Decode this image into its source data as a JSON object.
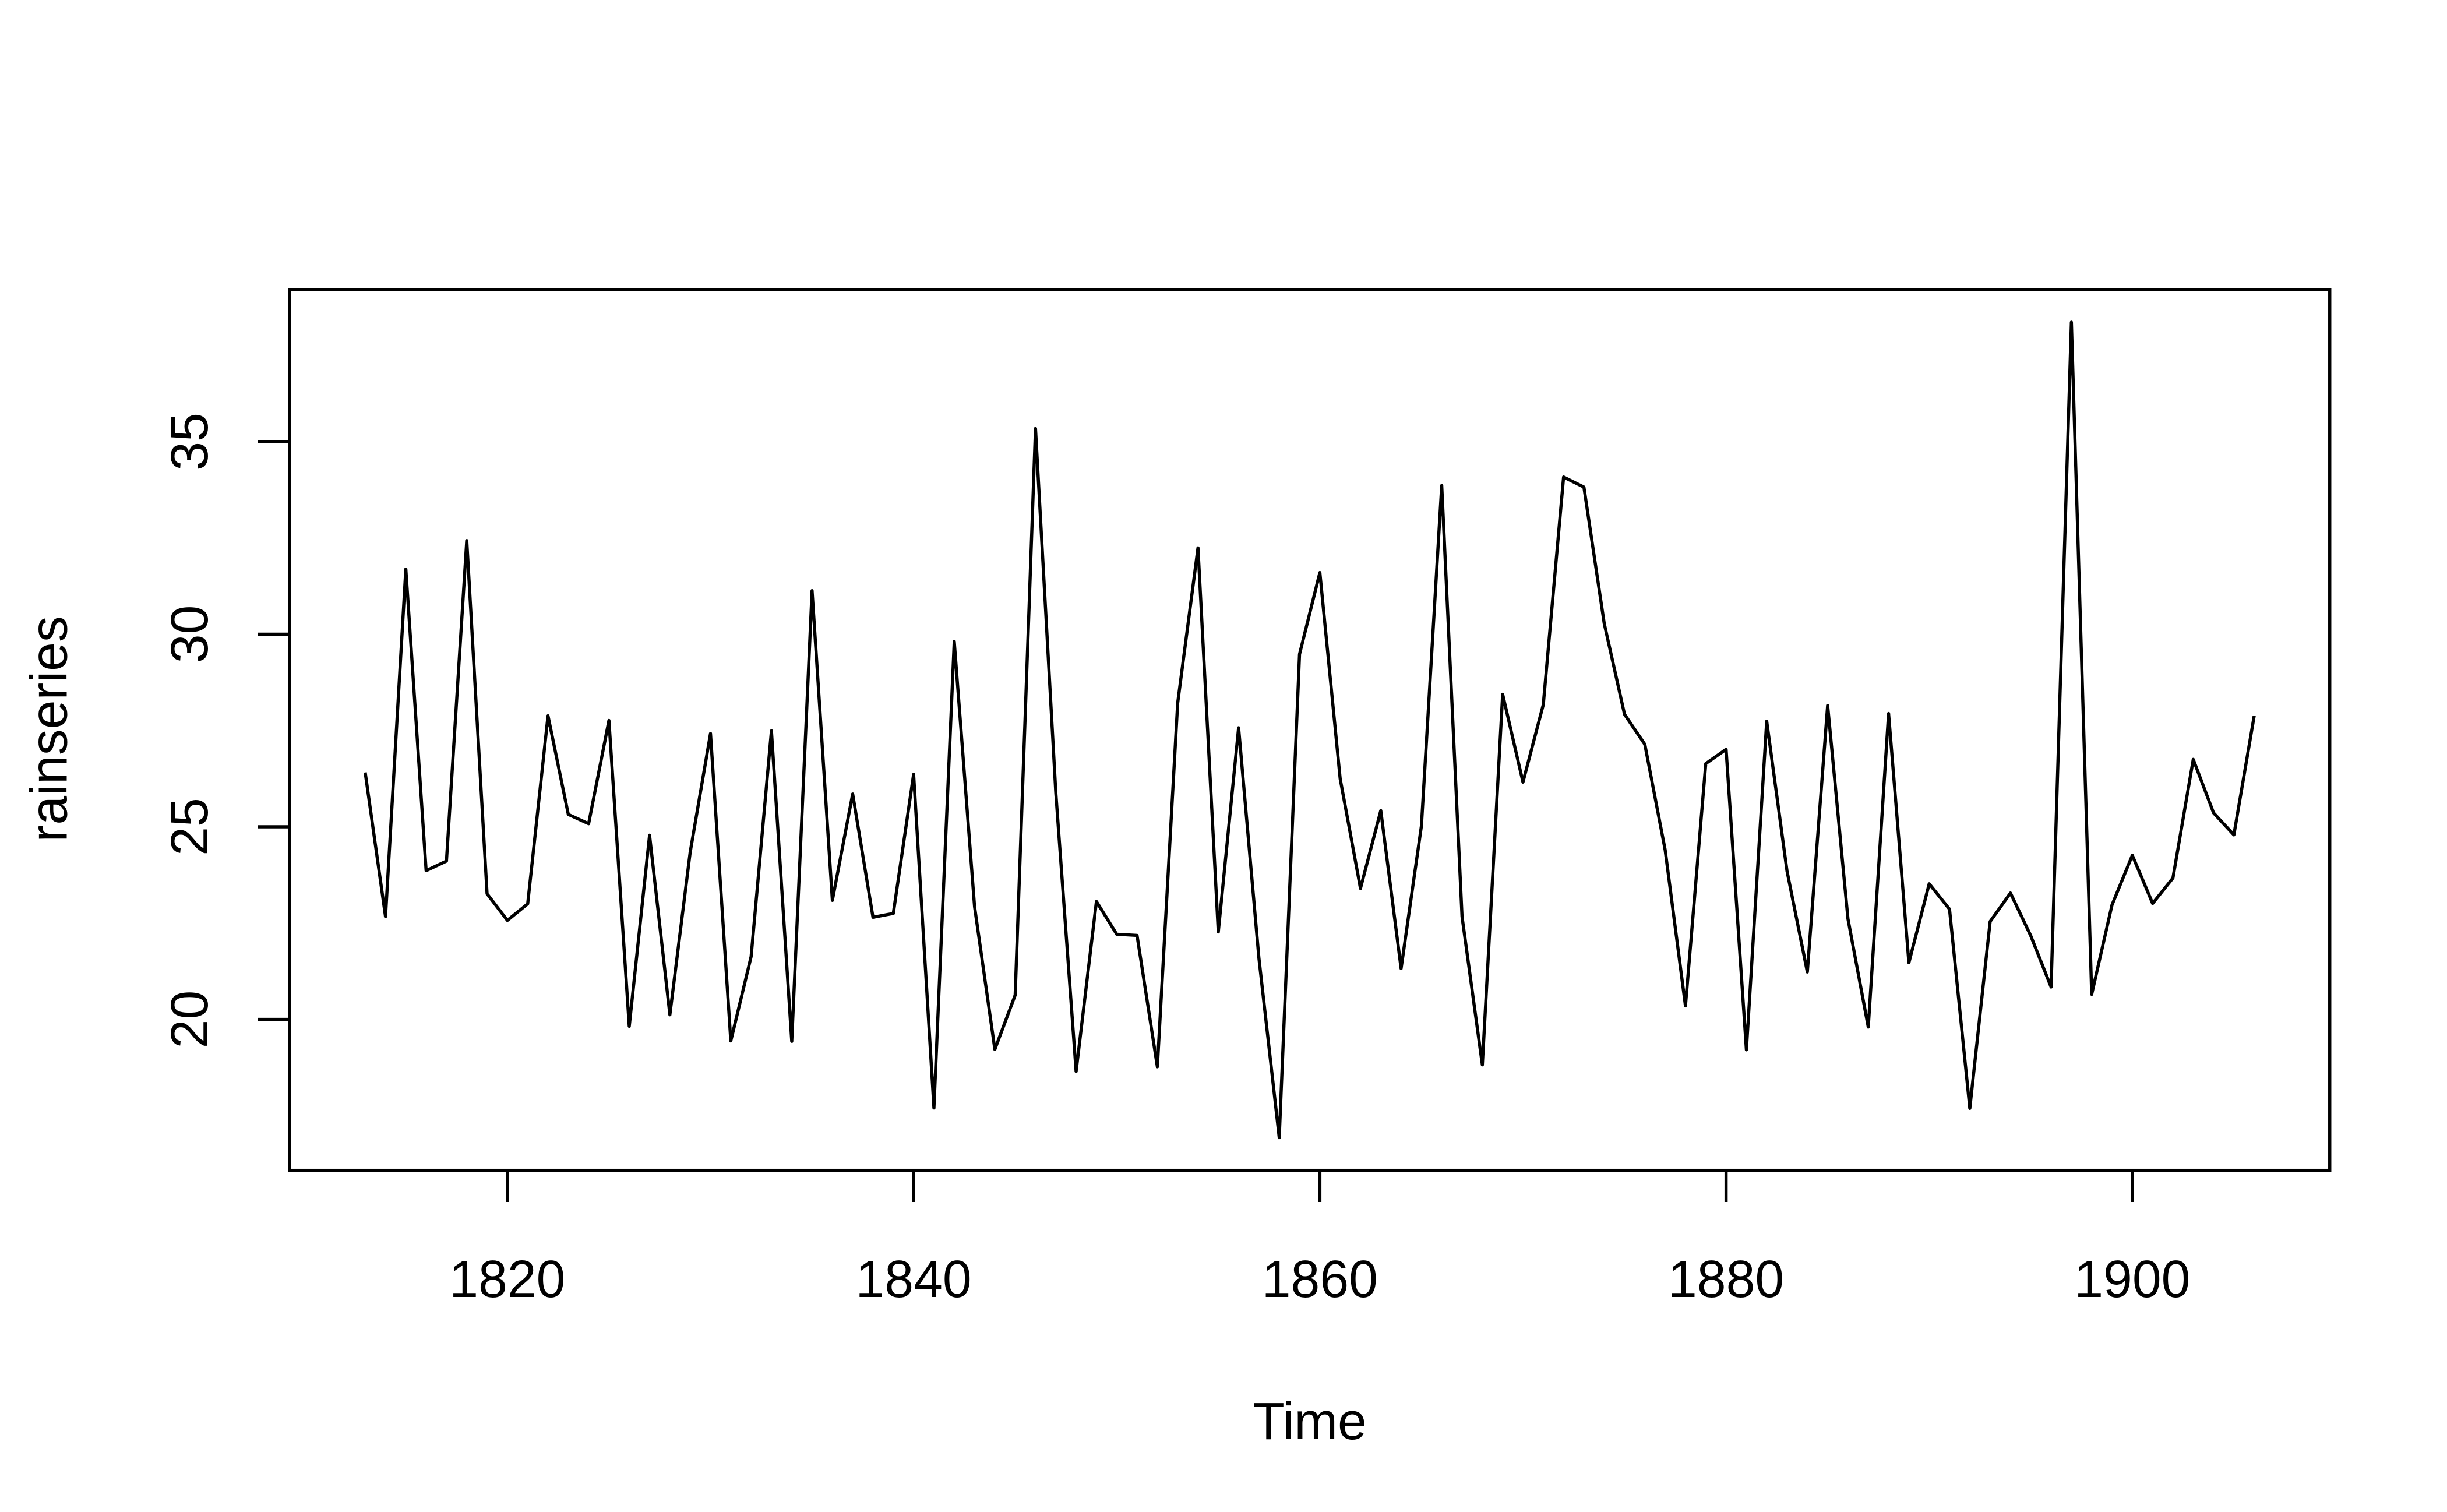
{
  "chart_data": {
    "type": "line",
    "xlabel": "Time",
    "ylabel": "rainseries",
    "x": [
      1813,
      1814,
      1815,
      1816,
      1817,
      1818,
      1819,
      1820,
      1821,
      1822,
      1823,
      1824,
      1825,
      1826,
      1827,
      1828,
      1829,
      1830,
      1831,
      1832,
      1833,
      1834,
      1835,
      1836,
      1837,
      1838,
      1839,
      1840,
      1841,
      1842,
      1843,
      1844,
      1845,
      1846,
      1847,
      1848,
      1849,
      1850,
      1851,
      1852,
      1853,
      1854,
      1855,
      1856,
      1857,
      1858,
      1859,
      1860,
      1861,
      1862,
      1863,
      1864,
      1865,
      1866,
      1867,
      1868,
      1869,
      1870,
      1871,
      1872,
      1873,
      1874,
      1875,
      1876,
      1877,
      1878,
      1879,
      1880,
      1881,
      1882,
      1883,
      1884,
      1885,
      1886,
      1887,
      1888,
      1889,
      1890,
      1891,
      1892,
      1893,
      1894,
      1895,
      1896,
      1897,
      1898,
      1899,
      1900,
      1901,
      1902,
      1903,
      1904,
      1905,
      1906
    ],
    "series": [
      {
        "color": "#000000",
        "values": [
          26.41,
          22.67,
          31.69,
          23.86,
          24.11,
          32.43,
          23.26,
          22.57,
          23.0,
          27.88,
          25.32,
          25.08,
          27.76,
          19.82,
          24.78,
          20.12,
          24.34,
          27.42,
          19.44,
          21.63,
          27.49,
          19.43,
          31.13,
          23.09,
          25.85,
          22.65,
          22.75,
          26.36,
          17.7,
          29.81,
          22.93,
          19.22,
          20.63,
          35.34,
          25.89,
          18.65,
          23.06,
          22.21,
          22.18,
          18.77,
          28.21,
          32.24,
          22.27,
          27.57,
          21.59,
          16.93,
          29.48,
          31.6,
          26.25,
          23.4,
          25.42,
          21.32,
          25.02,
          33.86,
          22.67,
          18.82,
          28.44,
          26.16,
          28.17,
          34.08,
          33.82,
          30.28,
          27.92,
          27.14,
          24.4,
          20.35,
          26.64,
          27.01,
          19.21,
          27.74,
          23.85,
          21.23,
          28.15,
          22.61,
          19.8,
          27.94,
          21.47,
          23.52,
          22.86,
          17.69,
          22.54,
          23.28,
          22.17,
          20.84,
          38.1,
          20.65,
          22.97,
          24.26,
          23.01,
          23.67,
          26.75,
          25.36,
          24.79,
          27.88
        ]
      }
    ],
    "xlim": [
      1809.28,
      1909.72
    ],
    "ylim": [
      16.08,
      38.95
    ],
    "xticks": [
      1820,
      1840,
      1860,
      1880,
      1900
    ],
    "yticks": [
      20,
      25,
      30,
      35
    ]
  }
}
